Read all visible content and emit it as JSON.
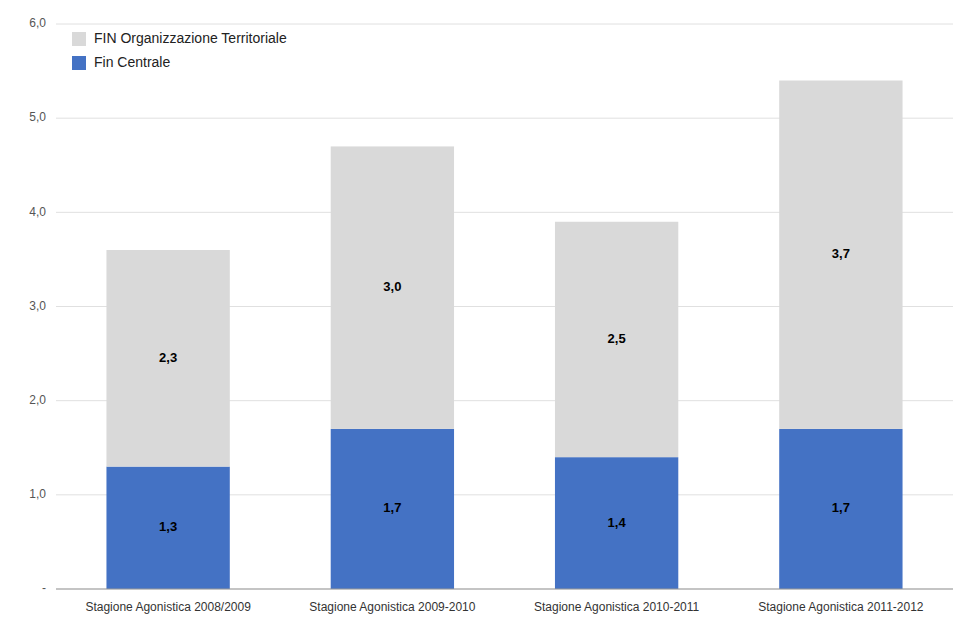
{
  "chart_data": {
    "type": "bar",
    "stacked": true,
    "data_labels": true,
    "grid": true,
    "legend": "upper left",
    "categories": [
      "Stagione Agonistica 2008/2009",
      "Stagione Agonistica 2009-2010",
      "Stagione Agonistica 2010-2011",
      "Stagione Agonistica 2011-2012"
    ],
    "series": [
      {
        "name": "Fin Centrale",
        "color": "#4472C4",
        "values": [
          1.3,
          1.7,
          1.4,
          1.7
        ],
        "value_labels": [
          "1,3",
          "1,7",
          "1,4",
          "1,7"
        ]
      },
      {
        "name": "FIN Organizzazione Territoriale",
        "color": "#D9D9D9",
        "values": [
          2.3,
          3.0,
          2.5,
          3.7
        ],
        "value_labels": [
          "2,3",
          "3,0",
          "2,5",
          "3,7"
        ]
      }
    ],
    "ylim": [
      0,
      6.0
    ],
    "yticks": [
      {
        "value": 0,
        "label": "-"
      },
      {
        "value": 1.0,
        "label": "1,0"
      },
      {
        "value": 2.0,
        "label": "2,0"
      },
      {
        "value": 3.0,
        "label": "3,0"
      },
      {
        "value": 4.0,
        "label": "4,0"
      },
      {
        "value": 5.0,
        "label": "5,0"
      },
      {
        "value": 6.0,
        "label": "6,0"
      }
    ]
  }
}
